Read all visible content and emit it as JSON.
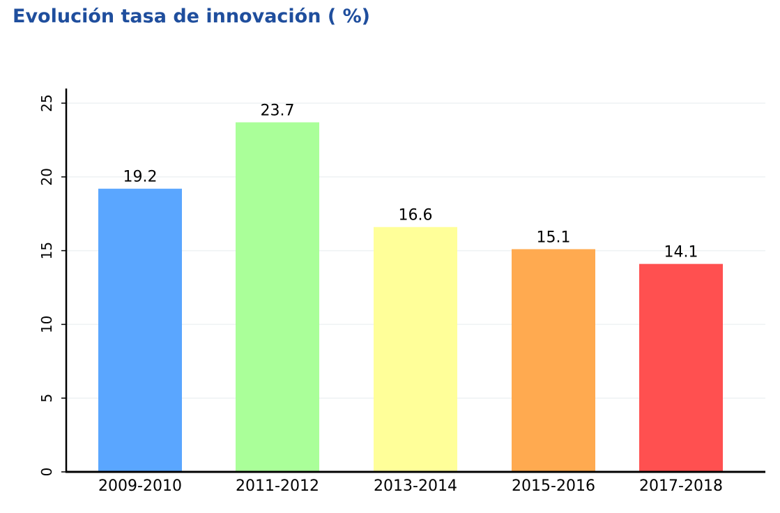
{
  "chart_data": {
    "type": "bar",
    "title": "Evolución tasa de innovación ( %)",
    "xlabel": "",
    "ylabel": "",
    "categories": [
      "2009-2010",
      "2011-2012",
      "2013-2014",
      "2015-2016",
      "2017-2018"
    ],
    "values": [
      19.2,
      23.7,
      16.6,
      15.1,
      14.1
    ],
    "data_labels": [
      "19.2",
      "23.7",
      "16.6",
      "15.1",
      "14.1"
    ],
    "colors": [
      "#5aa6ff",
      "#aaff99",
      "#ffff99",
      "#ffaa50",
      "#ff5050"
    ],
    "ylim": [
      0,
      25
    ],
    "yticks": [
      0,
      5,
      10,
      15,
      20,
      25
    ],
    "ytick_labels": [
      "0",
      "5",
      "10",
      "15",
      "20",
      "25"
    ],
    "grid": true,
    "grid_color": "#eef2f3",
    "legend": "none"
  }
}
